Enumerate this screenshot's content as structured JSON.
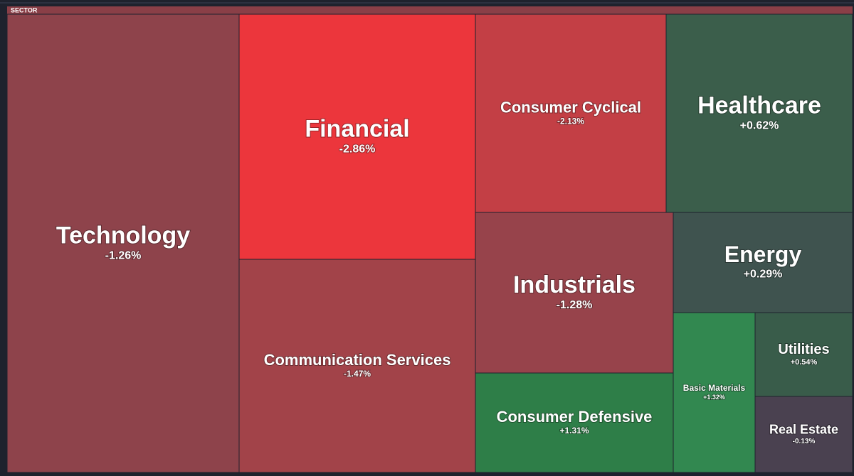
{
  "chart_data": {
    "type": "treemap",
    "header": "SECTOR",
    "categories": [
      "Technology",
      "Financial",
      "Communication Services",
      "Consumer Cyclical",
      "Healthcare",
      "Industrials",
      "Consumer Defensive",
      "Energy",
      "Basic Materials",
      "Utilities",
      "Real Estate"
    ],
    "values": [
      -1.26,
      -2.86,
      -1.47,
      -2.13,
      0.62,
      -1.28,
      1.31,
      0.29,
      1.32,
      0.54,
      -0.13
    ],
    "value_labels": [
      "-1.26%",
      "-2.86%",
      "-1.47%",
      "-2.13%",
      "+0.62%",
      "-1.28%",
      "+1.31%",
      "+0.29%",
      "+1.32%",
      "+0.54%",
      "-0.13%"
    ],
    "colors": [
      "#8e434b",
      "#ec363c",
      "#a24349",
      "#c33f45",
      "#3b5e4b",
      "#97434b",
      "#2e7e48",
      "#3f534f",
      "#328850",
      "#395c4a",
      "#4a4150"
    ]
  }
}
